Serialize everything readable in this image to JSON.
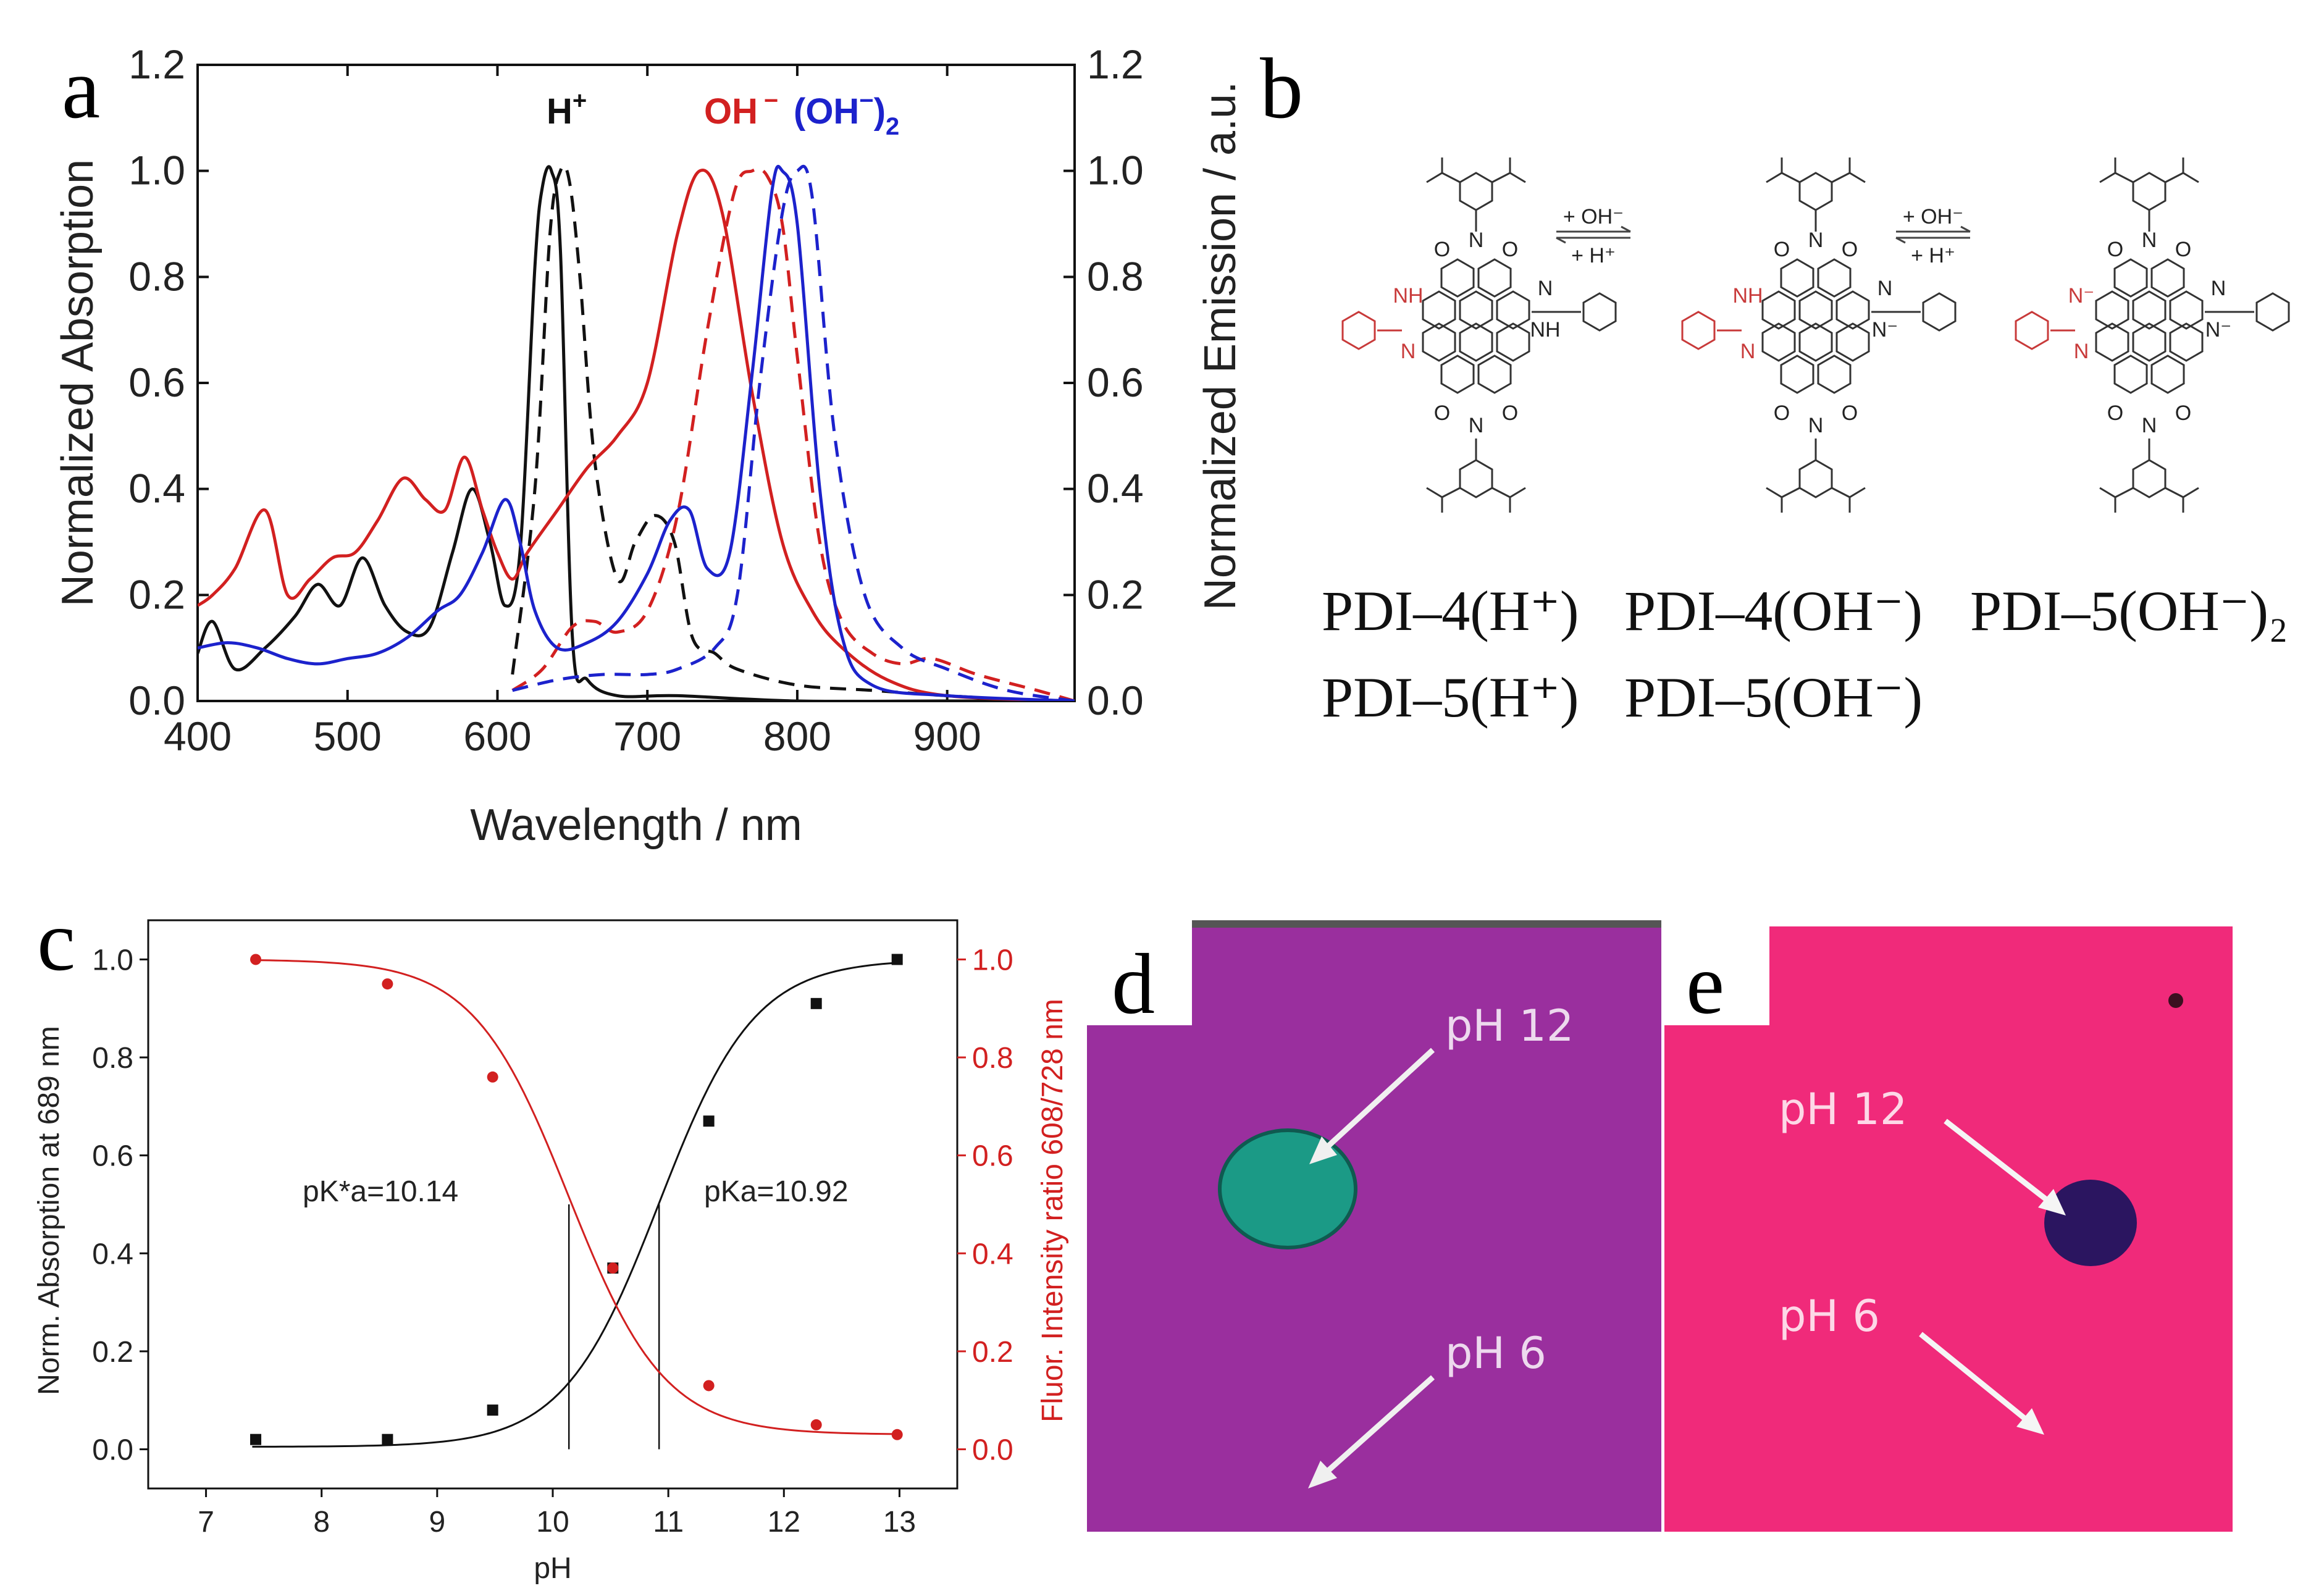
{
  "panels": {
    "a": "a",
    "b": "b",
    "c": "c",
    "d": "d",
    "e": "e"
  },
  "colors": {
    "black": "#111111",
    "red": "#d22020",
    "blue": "#1c22cc",
    "photo_d_bg": "#9a2f9e",
    "photo_d_drop": "#1b9a86",
    "photo_e_bg": "#f02a7a",
    "photo_e_drop": "#2b1560"
  },
  "chart_data": [
    {
      "id": "a",
      "type": "line",
      "title": "",
      "xlabel": "Wavelength / nm",
      "ylabel": "Normalized Absorption",
      "ylabel_right": "Normalized Emission / a.u.",
      "xlim": [
        400,
        985
      ],
      "ylim": [
        0,
        1.2
      ],
      "xticks": [
        "400",
        "500",
        "600",
        "700",
        "800",
        "900"
      ],
      "yticks": [
        "0.0",
        "0.2",
        "0.4",
        "0.6",
        "0.8",
        "1.0",
        "1.2"
      ],
      "legend": [
        "H+",
        "OH −",
        "(OH −)2"
      ],
      "series": [
        {
          "name": "H+ absorption",
          "color": "black",
          "style": "solid",
          "x": [
            400,
            410,
            425,
            445,
            465,
            480,
            495,
            510,
            525,
            540,
            555,
            570,
            583,
            595,
            605,
            615,
            625,
            630,
            636,
            642,
            650,
            660,
            680,
            720,
            800,
            900,
            985
          ],
          "y": [
            0.09,
            0.15,
            0.06,
            0.1,
            0.16,
            0.22,
            0.18,
            0.27,
            0.18,
            0.13,
            0.14,
            0.28,
            0.4,
            0.3,
            0.18,
            0.28,
            0.82,
            0.97,
            1.0,
            0.85,
            0.12,
            0.04,
            0.01,
            0.01,
            0.0,
            0.0,
            0.0
          ]
        },
        {
          "name": "H+ emission",
          "color": "black",
          "style": "dashed",
          "x": [
            610,
            625,
            635,
            642,
            648,
            655,
            665,
            680,
            692,
            705,
            718,
            730,
            745,
            760,
            800,
            850,
            900,
            960
          ],
          "y": [
            0.05,
            0.4,
            0.88,
            1.0,
            0.98,
            0.8,
            0.45,
            0.23,
            0.3,
            0.35,
            0.3,
            0.12,
            0.09,
            0.06,
            0.03,
            0.02,
            0.01,
            0.0
          ]
        },
        {
          "name": "OH- absorption",
          "color": "red",
          "style": "solid",
          "x": [
            400,
            410,
            425,
            445,
            460,
            475,
            490,
            505,
            520,
            537,
            552,
            565,
            578,
            590,
            600,
            610,
            620,
            640,
            660,
            680,
            700,
            720,
            735,
            750,
            770,
            790,
            810,
            830,
            860,
            900,
            985
          ],
          "y": [
            0.18,
            0.2,
            0.25,
            0.36,
            0.2,
            0.23,
            0.27,
            0.28,
            0.34,
            0.42,
            0.38,
            0.36,
            0.46,
            0.36,
            0.28,
            0.23,
            0.28,
            0.36,
            0.44,
            0.5,
            0.6,
            0.88,
            1.0,
            0.92,
            0.58,
            0.3,
            0.17,
            0.1,
            0.04,
            0.01,
            0.0
          ]
        },
        {
          "name": "OH- emission",
          "color": "red",
          "style": "dashed",
          "x": [
            610,
            630,
            650,
            665,
            680,
            700,
            720,
            740,
            758,
            770,
            780,
            790,
            800,
            815,
            830,
            850,
            870,
            890,
            920,
            960,
            985
          ],
          "y": [
            0.02,
            0.06,
            0.14,
            0.15,
            0.13,
            0.17,
            0.35,
            0.7,
            0.96,
            1.0,
            0.99,
            0.9,
            0.65,
            0.3,
            0.15,
            0.09,
            0.07,
            0.08,
            0.05,
            0.02,
            0.0
          ]
        },
        {
          "name": "(OH-)2 absorption",
          "color": "blue",
          "style": "solid",
          "x": [
            400,
            420,
            440,
            460,
            480,
            500,
            520,
            540,
            560,
            575,
            590,
            605,
            615,
            625,
            640,
            660,
            680,
            700,
            715,
            728,
            740,
            755,
            770,
            783,
            790,
            800,
            815,
            830,
            850,
            900,
            985
          ],
          "y": [
            0.1,
            0.11,
            0.1,
            0.08,
            0.07,
            0.08,
            0.09,
            0.12,
            0.17,
            0.2,
            0.28,
            0.38,
            0.3,
            0.17,
            0.1,
            0.11,
            0.15,
            0.24,
            0.34,
            0.36,
            0.25,
            0.28,
            0.62,
            0.96,
            1.0,
            0.9,
            0.4,
            0.12,
            0.03,
            0.01,
            0.0
          ]
        },
        {
          "name": "(OH-)2 emission",
          "color": "blue",
          "style": "dashed",
          "x": [
            610,
            640,
            670,
            700,
            720,
            745,
            760,
            775,
            790,
            800,
            810,
            825,
            845,
            870,
            900,
            940,
            985
          ],
          "y": [
            0.02,
            0.04,
            0.05,
            0.05,
            0.06,
            0.1,
            0.2,
            0.6,
            0.92,
            1.0,
            0.95,
            0.5,
            0.2,
            0.1,
            0.06,
            0.02,
            0.0
          ]
        }
      ]
    },
    {
      "id": "c",
      "type": "scatter",
      "title": "",
      "xlabel": "pH",
      "ylabel": "Norm. Absorption at 689 nm",
      "ylabel_right": "Fluor. Intensity ratio 608/728 nm",
      "xlim": [
        6.5,
        13.5
      ],
      "ylim": [
        -0.08,
        1.08
      ],
      "xticks": [
        "7",
        "8",
        "9",
        "10",
        "11",
        "12",
        "13"
      ],
      "yticks": [
        "0.0",
        "0.2",
        "0.4",
        "0.6",
        "0.8",
        "1.0"
      ],
      "series": [
        {
          "name": "Norm. Absorption at 689 nm",
          "color": "black",
          "x": [
            7.43,
            8.57,
            9.48,
            10.52,
            11.35,
            12.28,
            12.98
          ],
          "y": [
            0.02,
            0.02,
            0.08,
            0.37,
            0.67,
            0.91,
            1.0
          ]
        },
        {
          "name": "Fluor. Intensity ratio 608/728 nm",
          "color": "red",
          "x": [
            7.43,
            8.57,
            9.48,
            10.52,
            11.35,
            12.28,
            12.98
          ],
          "y": [
            1.0,
            0.95,
            0.76,
            0.37,
            0.13,
            0.05,
            0.03
          ]
        }
      ],
      "fits": {
        "black_pKa": 10.92,
        "red_pKa": 10.14
      },
      "annotations": {
        "red_label": "pK*a=10.14",
        "black_label": "pKa=10.92"
      }
    }
  ],
  "panel_a": {
    "species": {
      "h": "H",
      "h_sup": "+",
      "oh": "OH",
      "oh_sup": "−",
      "oh2": "(OH",
      "oh2_sup": "−",
      "oh2_close": ")",
      "oh2_sub": "2"
    }
  },
  "panel_b": {
    "arrow1_top": "+ OH⁻",
    "arrow1_bottom": "+ H⁺",
    "arrow2_top": "+ OH⁻",
    "arrow2_bottom": "+ H⁺",
    "labels_row1": [
      "PDI–4(H⁺)",
      "PDI–4(OH⁻)",
      "PDI–5(OH⁻)₂"
    ],
    "labels_row2": [
      "PDI–5(H⁺)",
      "PDI–5(OH⁻)"
    ],
    "atoms": {
      "N": "N",
      "NH": "NH",
      "H": "H",
      "O": "O",
      "Nminus": "N⁻"
    }
  },
  "panel_d": {
    "label_top": "pH 12",
    "label_bottom": "pH 6"
  },
  "panel_e": {
    "label_top": "pH 12",
    "label_bottom": "pH 6"
  }
}
